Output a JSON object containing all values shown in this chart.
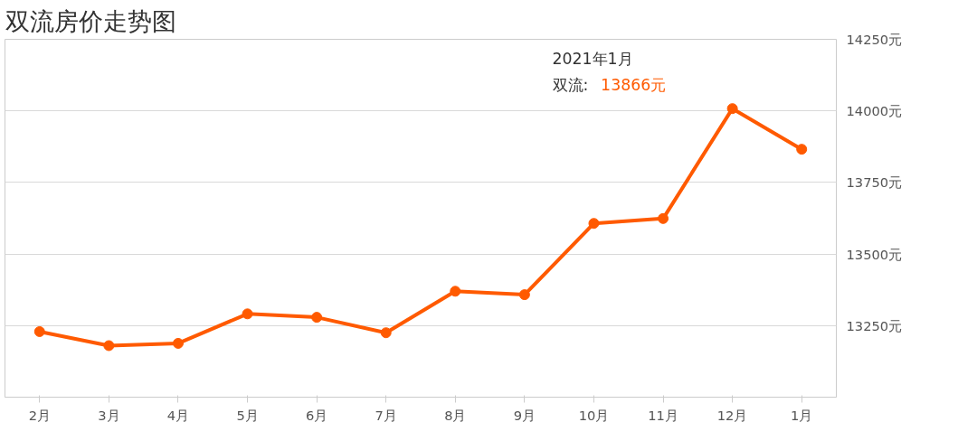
{
  "chart_data": {
    "type": "line",
    "title": "双流房价走势图",
    "categories": [
      "2月",
      "3月",
      "4月",
      "5月",
      "6月",
      "7月",
      "8月",
      "9月",
      "10月",
      "11月",
      "12月",
      "1月"
    ],
    "series": [
      {
        "color": "#ff5a00",
        "values": [
          13229,
          13180,
          13188,
          13291,
          13279,
          13225,
          13370,
          13358,
          13607,
          13624,
          14008,
          13866
        ]
      }
    ],
    "ylim": [
      13000,
      14250
    ],
    "yticks": [
      {
        "value": 13250,
        "label": "13250元"
      },
      {
        "value": 13500,
        "label": "13500元"
      },
      {
        "value": 13750,
        "label": "13750元"
      },
      {
        "value": 14000,
        "label": "14000元"
      },
      {
        "value": 14250,
        "label": "14250元"
      }
    ],
    "grid": "y",
    "marker": "circle",
    "line_style": "solid",
    "annotations": [
      "2021年1月",
      "双流:",
      "13866元"
    ]
  }
}
